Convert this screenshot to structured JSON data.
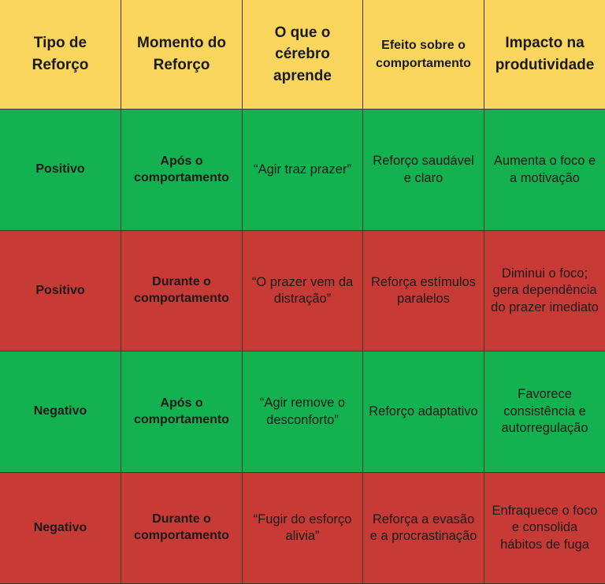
{
  "headers": [
    "Tipo de Reforço",
    "Momento do Reforço",
    "O que o cérebro aprende",
    "Efeito sobre o comportamento",
    "Impacto na produtividade"
  ],
  "rows": [
    {
      "color": "#13b14f",
      "cells": [
        "Positivo",
        "Após o comportamento",
        "“Agir traz prazer”",
        "Reforço saudável e claro",
        "Aumenta o foco e a motivação"
      ]
    },
    {
      "color": "#c73a36",
      "cells": [
        "Positivo",
        "Durante o comportamento",
        "“O prazer vem da distração”",
        "Reforça estímulos paralelos",
        "Diminui o foco; gera dependência do prazer imediato"
      ]
    },
    {
      "color": "#13b14f",
      "cells": [
        "Negativo",
        "Após o comportamento",
        "“Agir remove o desconforto”",
        "Reforço adaptativo",
        "Favorece consistência e autorregulação"
      ]
    },
    {
      "color": "#c73a36",
      "cells": [
        "Negativo",
        "Durante o comportamento",
        "“Fugir do esforço alivia”",
        "Reforça a evasão e a procrastinação",
        "Enfraquece o foco e consolida hábitos de fuga"
      ]
    }
  ],
  "colors": {
    "header": "#fbd65f",
    "good": "#13b14f",
    "bad": "#c73a36"
  }
}
